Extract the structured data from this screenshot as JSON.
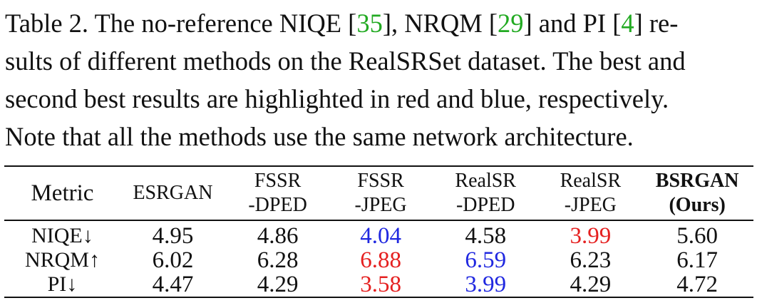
{
  "caption": {
    "line1_a": "Table 2. The no-reference NIQE [",
    "ref1": "35",
    "line1_b": "], NRQM [",
    "ref2": "29",
    "line1_c": "] and PI [",
    "ref3": "4",
    "line1_d": "] re-",
    "line2": "sults of different methods on the RealSRSet dataset. The best and",
    "line3": "second best results are highlighted in red and blue, respectively.",
    "line4": "Note that all the methods use the same network architecture."
  },
  "table": {
    "headers": [
      {
        "line1": "Metric",
        "line2": ""
      },
      {
        "line1": "ESRGAN",
        "line2": ""
      },
      {
        "line1": "FSSR",
        "line2": "-DPED"
      },
      {
        "line1": "FSSR",
        "line2": "-JPEG"
      },
      {
        "line1": "RealSR",
        "line2": "-DPED"
      },
      {
        "line1": "RealSR",
        "line2": "-JPEG"
      },
      {
        "line1": "BSRGAN",
        "line2": "(Ours)"
      }
    ],
    "rows": [
      {
        "metric": "NIQE↓",
        "values": [
          "4.95",
          "4.86",
          "4.04",
          "4.58",
          "3.99",
          "5.60"
        ],
        "highlight": [
          "",
          "",
          "second",
          "",
          "best",
          ""
        ]
      },
      {
        "metric": "NRQM↑",
        "values": [
          "6.02",
          "6.28",
          "6.88",
          "6.59",
          "6.23",
          "6.17"
        ],
        "highlight": [
          "",
          "",
          "best",
          "second",
          "",
          ""
        ]
      },
      {
        "metric": "PI↓",
        "values": [
          "4.47",
          "4.29",
          "3.58",
          "3.99",
          "4.29",
          "4.72"
        ],
        "highlight": [
          "",
          "",
          "best",
          "second",
          "",
          ""
        ]
      }
    ]
  },
  "colors": {
    "best": "#e52020",
    "second": "#2028e0",
    "citation": "#22aa22"
  }
}
